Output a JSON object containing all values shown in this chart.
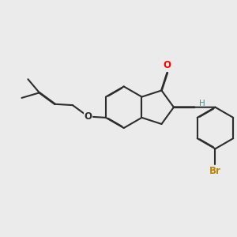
{
  "background_color": "#ebebeb",
  "bond_color": "#2d2d2d",
  "bond_width": 1.5,
  "atom_colors": {
    "O_carbonyl": "#ff0000",
    "O_ring": "#2d2d2d",
    "O_ether": "#2d2d2d",
    "Br": "#b8860b",
    "H": "#4a9090",
    "C": "#2d2d2d"
  },
  "figsize": [
    3.0,
    3.0
  ],
  "dpi": 100
}
